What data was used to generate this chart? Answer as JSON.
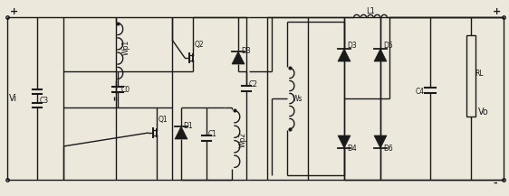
{
  "bg_color": "#ede8dc",
  "line_color": "#1a1a1a",
  "lw": 1.0,
  "fig_width": 5.62,
  "fig_height": 2.17,
  "labels": {
    "plus_left": "+",
    "Vi": "Vi",
    "C3": "C3",
    "Wp1": "Wp1",
    "C0": "C0",
    "Q2": "Q2",
    "Q1": "Q1",
    "D1": "D1",
    "D3": "D3",
    "C1": "C1",
    "C2": "C2",
    "Wp2": "Wp2",
    "Ws": "Ws",
    "D3b": "D3",
    "D5": "D5",
    "D4": "D4",
    "D6": "D6",
    "L1": "L1",
    "C4": "C4",
    "RL": "RL",
    "Vo": "Vo",
    "plus_right": "+",
    "minus_right": "-"
  }
}
